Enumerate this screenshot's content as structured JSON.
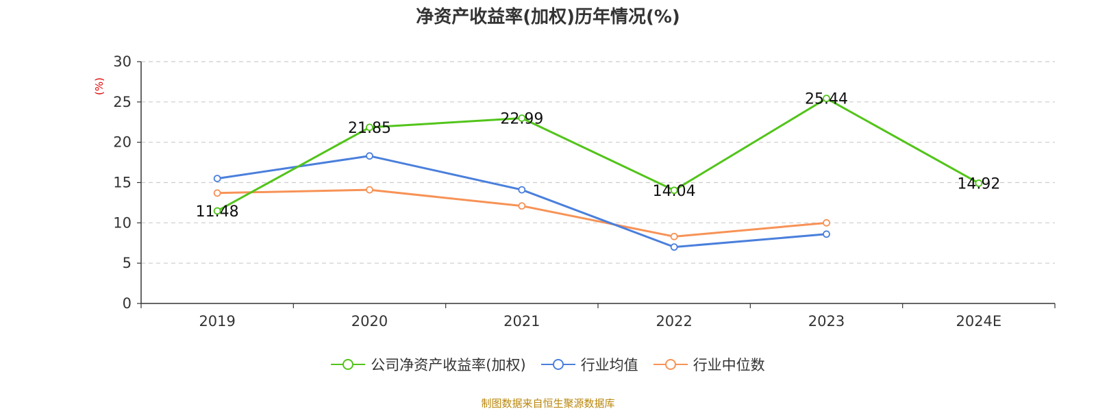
{
  "chart_data": {
    "type": "line",
    "title": "净资产收益率(加权)历年情况(%)",
    "ylabel": "(%)",
    "xlabel": "",
    "categories": [
      "2019",
      "2020",
      "2021",
      "2022",
      "2023",
      "2024E"
    ],
    "ylim": [
      0,
      30
    ],
    "yticks": [
      0,
      5,
      10,
      15,
      20,
      25,
      30
    ],
    "grid": true,
    "legend_position": "bottom",
    "series": [
      {
        "name": "公司净资产收益率(加权)",
        "color": "#52c41a",
        "values": [
          11.48,
          21.85,
          22.99,
          14.04,
          25.44,
          14.92
        ],
        "labels": [
          "11.48",
          "21.85",
          "22.99",
          "14.04",
          "25.44",
          "14.92"
        ]
      },
      {
        "name": "行业均值",
        "color": "#4a7fdc",
        "values": [
          15.5,
          18.3,
          14.1,
          7.0,
          8.6,
          null
        ]
      },
      {
        "name": "行业中位数",
        "color": "#f79256",
        "values": [
          13.7,
          14.1,
          12.1,
          8.3,
          10.0,
          null
        ]
      }
    ]
  },
  "footer": "制图数据来自恒生聚源数据库"
}
